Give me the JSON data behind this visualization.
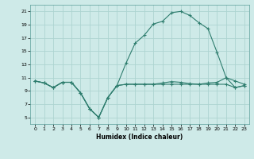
{
  "xlabel": "Humidex (Indice chaleur)",
  "x_values": [
    0,
    1,
    2,
    3,
    4,
    5,
    6,
    7,
    8,
    9,
    10,
    11,
    12,
    13,
    14,
    15,
    16,
    17,
    18,
    19,
    20,
    21,
    22,
    23
  ],
  "line1_y": [
    10.5,
    10.2,
    9.5,
    10.3,
    10.3,
    8.7,
    6.3,
    5.0,
    8.0,
    9.8,
    13.2,
    16.2,
    17.4,
    19.1,
    19.5,
    20.8,
    21.0,
    20.4,
    19.3,
    18.4,
    14.8,
    11.0,
    10.5,
    10.0
  ],
  "line2_y": [
    10.5,
    10.2,
    9.5,
    10.3,
    10.3,
    8.7,
    6.3,
    5.0,
    8.0,
    9.8,
    10.0,
    10.0,
    10.0,
    10.0,
    10.2,
    10.4,
    10.3,
    10.1,
    10.0,
    10.2,
    10.3,
    11.0,
    9.5,
    9.8
  ],
  "line3_y": [
    10.5,
    10.2,
    9.5,
    10.3,
    10.3,
    8.7,
    6.3,
    5.0,
    8.0,
    9.8,
    10.0,
    10.0,
    10.0,
    10.0,
    10.0,
    10.0,
    10.0,
    10.0,
    10.0,
    10.0,
    10.0,
    10.0,
    9.5,
    9.8
  ],
  "line_color": "#2e7d6e",
  "bg_color": "#ceeae8",
  "grid_color": "#add4d1",
  "ylim": [
    4,
    22
  ],
  "yticks": [
    5,
    7,
    9,
    11,
    13,
    15,
    17,
    19,
    21
  ],
  "xlim": [
    -0.5,
    23.5
  ],
  "xticks": [
    0,
    1,
    2,
    3,
    4,
    5,
    6,
    7,
    8,
    9,
    10,
    11,
    12,
    13,
    14,
    15,
    16,
    17,
    18,
    19,
    20,
    21,
    22,
    23
  ]
}
